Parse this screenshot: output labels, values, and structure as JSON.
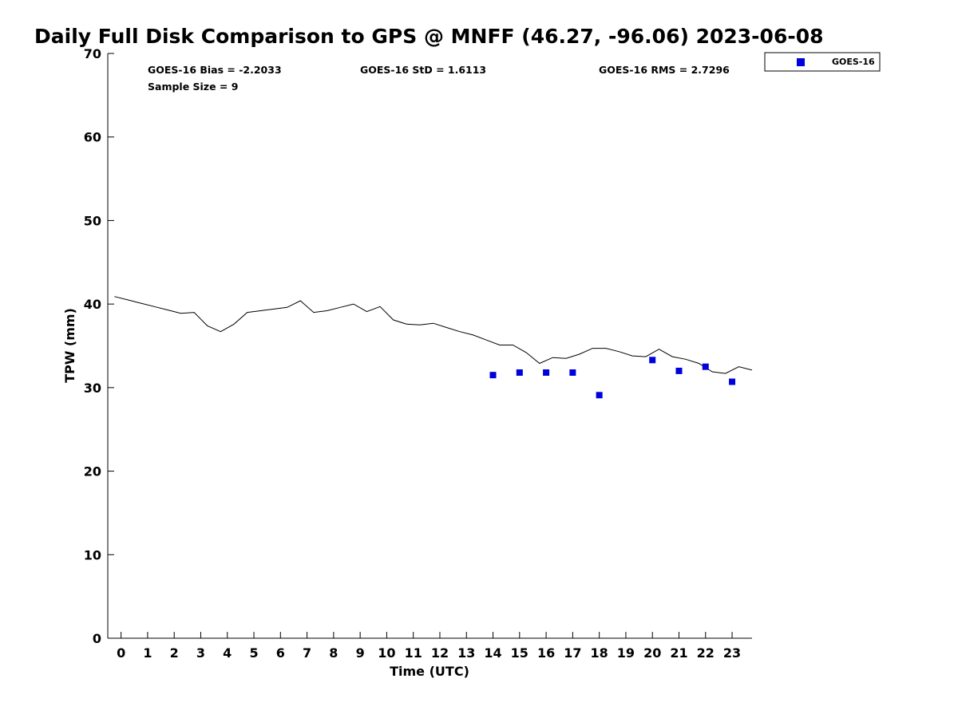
{
  "chart_data": {
    "type": "scatter",
    "title": "Daily Full Disk Comparison to GPS @ MNFF (46.27, -96.06) 2023-06-08",
    "xlabel": "Time (UTC)",
    "ylabel": "TPW (mm)",
    "xlim": [
      -0.5,
      23.75
    ],
    "ylim": [
      0,
      70
    ],
    "x_ticks": [
      0,
      1,
      2,
      3,
      4,
      5,
      6,
      7,
      8,
      9,
      10,
      11,
      12,
      13,
      14,
      15,
      16,
      17,
      18,
      19,
      20,
      21,
      22,
      23
    ],
    "y_ticks": [
      0,
      10,
      20,
      30,
      40,
      50,
      60,
      70
    ],
    "grid": false,
    "legend_position": "top-right, outside plot",
    "stats": {
      "bias": "GOES-16 Bias = -2.2033",
      "std": "GOES-16 StD = 1.6113",
      "rms": "GOES-16 RMS = 2.7296",
      "sample": "Sample Size = 9"
    },
    "series": [
      {
        "kind": "line",
        "color": "#000000",
        "x": [
          -0.25,
          0.25,
          0.75,
          1.25,
          1.75,
          2.25,
          2.75,
          3.25,
          3.75,
          4.25,
          4.75,
          5.25,
          5.75,
          6.25,
          6.75,
          7.25,
          7.75,
          8.25,
          8.75,
          9.25,
          9.75,
          10.25,
          10.75,
          11.25,
          11.75,
          12.25,
          12.75,
          13.25,
          13.75,
          14.25,
          14.75,
          15.25,
          15.75,
          16.25,
          16.75,
          17.25,
          17.75,
          18.25,
          18.75,
          19.25,
          19.75,
          20.25,
          20.75,
          21.25,
          21.75,
          22.25,
          22.75,
          23.25,
          23.75
        ],
        "y": [
          40.9,
          40.5,
          40.1,
          39.7,
          39.3,
          38.9,
          39.0,
          37.4,
          36.7,
          37.6,
          39.0,
          39.2,
          39.4,
          39.6,
          40.4,
          39.0,
          39.2,
          39.6,
          40.0,
          39.1,
          39.7,
          38.1,
          37.6,
          37.5,
          37.7,
          37.2,
          36.7,
          36.3,
          35.7,
          35.1,
          35.1,
          34.2,
          32.9,
          33.6,
          33.5,
          34.0,
          34.7,
          34.7,
          34.3,
          33.8,
          33.7,
          34.6,
          33.7,
          33.4,
          32.9,
          31.9,
          31.7,
          32.5,
          32.1
        ]
      },
      {
        "kind": "scatter",
        "name": "GOES-16",
        "color": "#0000dd",
        "marker": "square",
        "x": [
          14,
          15,
          16,
          17,
          18,
          20,
          21,
          22,
          23
        ],
        "y": [
          31.5,
          31.8,
          31.8,
          31.8,
          29.1,
          33.3,
          32.0,
          32.5,
          30.7
        ]
      }
    ]
  }
}
